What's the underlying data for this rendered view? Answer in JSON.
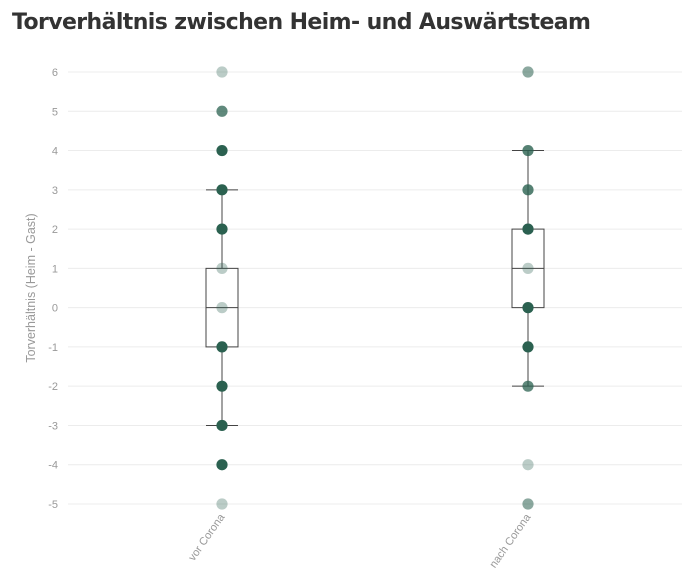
{
  "chart_data": {
    "type": "box",
    "title": "Torverhältnis zwischen Heim- und Auswärtsteam",
    "ylabel": "Torverhältnis (Heim - Gast)",
    "xlabel": "",
    "ylim": [
      -5,
      6
    ],
    "yticks": [
      "6",
      "5",
      "4",
      "3",
      "2",
      "1",
      "0",
      "-1",
      "-2",
      "-3",
      "-4",
      "-5"
    ],
    "grid": true,
    "colors": {
      "point": "#2b6150",
      "box_stroke": "#444444",
      "grid": "#ececec",
      "tick_text": "#999999"
    },
    "groups": [
      {
        "category": "vor Corona",
        "box": {
          "whisker_low": -3,
          "q1": -1,
          "median": 0,
          "q3": 1,
          "whisker_high": 3
        },
        "points": [
          {
            "y": 6,
            "opacity": 0.32
          },
          {
            "y": 5,
            "opacity": 0.75
          },
          {
            "y": 4,
            "opacity": 1.0
          },
          {
            "y": 3,
            "opacity": 1.0
          },
          {
            "y": 2,
            "opacity": 1.0
          },
          {
            "y": 1,
            "opacity": 0.32
          },
          {
            "y": 0,
            "opacity": 0.32
          },
          {
            "y": -1,
            "opacity": 1.0
          },
          {
            "y": -2,
            "opacity": 1.0
          },
          {
            "y": -3,
            "opacity": 1.0
          },
          {
            "y": -4,
            "opacity": 1.0
          },
          {
            "y": -5,
            "opacity": 0.32
          }
        ]
      },
      {
        "category": "nach Corona",
        "box": {
          "whisker_low": -2,
          "q1": 0,
          "median": 1,
          "q3": 2,
          "whisker_high": 4
        },
        "points": [
          {
            "y": 6,
            "opacity": 0.55
          },
          {
            "y": 4,
            "opacity": 0.8
          },
          {
            "y": 3,
            "opacity": 0.8
          },
          {
            "y": 2,
            "opacity": 1.0
          },
          {
            "y": 2,
            "opacity": 0.25
          },
          {
            "y": 1,
            "opacity": 0.32
          },
          {
            "y": 0,
            "opacity": 1.0
          },
          {
            "y": -1,
            "opacity": 1.0
          },
          {
            "y": -2,
            "opacity": 0.75
          },
          {
            "y": -4,
            "opacity": 0.32
          },
          {
            "y": -5,
            "opacity": 0.55
          }
        ]
      }
    ]
  }
}
